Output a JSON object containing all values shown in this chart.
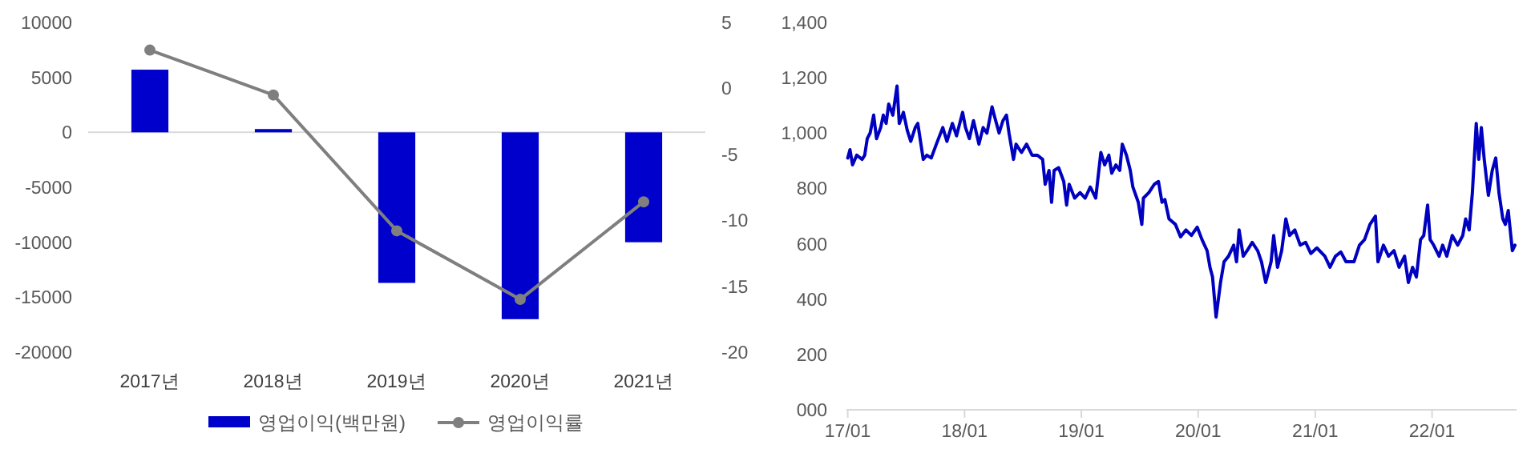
{
  "chart_data": [
    {
      "type": "bar",
      "categories": [
        "2017년",
        "2018년",
        "2019년",
        "2020년",
        "2021년"
      ],
      "series": [
        {
          "name": "영업이익(백만원)",
          "type": "bar",
          "color": "#0000cc",
          "values": [
            5700,
            300,
            -13700,
            -17000,
            -10000
          ]
        },
        {
          "name": "영업이익률",
          "type": "line",
          "axis": "y2",
          "marker": "circle",
          "color": "#7f7f7f",
          "values": [
            2.9,
            -0.5,
            -10.8,
            -16.0,
            -8.6
          ]
        }
      ],
      "ylim": [
        -20000,
        10000
      ],
      "yticks": [
        -20000,
        -15000,
        -10000,
        -5000,
        0,
        5000,
        10000
      ],
      "y2lim": [
        -20,
        5
      ],
      "y2ticks": [
        -20,
        -15,
        -10,
        -5,
        0,
        5
      ],
      "legend": "bottom"
    },
    {
      "type": "line",
      "x": [
        "2017-01-01",
        "2017-01-08",
        "2017-01-16",
        "2017-01-29",
        "2017-02-15",
        "2017-02-23",
        "2017-03-03",
        "2017-03-12",
        "2017-03-23",
        "2017-04-01",
        "2017-04-14",
        "2017-04-22",
        "2017-05-01",
        "2017-05-09",
        "2017-05-22",
        "2017-06-04",
        "2017-06-11",
        "2017-06-24",
        "2017-07-06",
        "2017-07-17",
        "2017-07-31",
        "2017-08-08",
        "2017-08-25",
        "2017-09-05",
        "2017-09-19",
        "2017-10-05",
        "2017-10-25",
        "2017-11-07",
        "2017-11-24",
        "2017-12-07",
        "2017-12-26",
        "2018-01-04",
        "2018-01-16",
        "2018-01-29",
        "2018-02-15",
        "2018-02-28",
        "2018-03-12",
        "2018-03-28",
        "2018-04-06",
        "2018-04-19",
        "2018-05-01",
        "2018-05-12",
        "2018-05-20",
        "2018-06-03",
        "2018-06-11",
        "2018-06-28",
        "2018-07-14",
        "2018-07-31",
        "2018-08-17",
        "2018-09-02",
        "2018-09-10",
        "2018-09-22",
        "2018-09-30",
        "2018-10-08",
        "2018-10-22",
        "2018-11-07",
        "2018-11-16",
        "2018-11-24",
        "2018-12-11",
        "2018-12-28",
        "2019-01-13",
        "2019-01-29",
        "2019-02-15",
        "2019-03-03",
        "2019-03-15",
        "2019-03-28",
        "2019-04-06",
        "2019-04-19",
        "2019-05-01",
        "2019-05-09",
        "2019-05-22",
        "2019-06-03",
        "2019-06-11",
        "2019-06-28",
        "2019-07-09",
        "2019-07-14",
        "2019-07-31",
        "2019-08-17",
        "2019-08-30",
        "2019-09-10",
        "2019-09-19",
        "2019-10-02",
        "2019-10-22",
        "2019-11-07",
        "2019-11-24",
        "2019-12-11",
        "2019-12-29",
        "2020-01-13",
        "2020-01-29",
        "2020-02-07",
        "2020-02-15",
        "2020-02-26",
        "2020-03-11",
        "2020-03-22",
        "2020-04-05",
        "2020-04-21",
        "2020-04-30",
        "2020-05-08",
        "2020-05-21",
        "2020-06-02",
        "2020-06-18",
        "2020-07-05",
        "2020-07-17",
        "2020-07-30",
        "2020-08-16",
        "2020-08-24",
        "2020-09-05",
        "2020-09-18",
        "2020-10-01",
        "2020-10-13",
        "2020-10-29",
        "2020-11-15",
        "2020-12-02",
        "2020-12-18",
        "2021-01-06",
        "2021-01-31",
        "2021-02-16",
        "2021-03-05",
        "2021-03-22",
        "2021-04-07",
        "2021-05-02",
        "2021-05-19",
        "2021-06-04",
        "2021-06-21",
        "2021-07-08",
        "2021-07-16",
        "2021-08-02",
        "2021-08-18",
        "2021-09-04",
        "2021-09-20",
        "2021-10-07",
        "2021-10-19",
        "2021-11-01",
        "2021-11-13",
        "2021-11-26",
        "2021-12-06",
        "2021-12-18",
        "2021-12-26",
        "2022-01-06",
        "2022-01-23",
        "2022-02-03",
        "2022-02-16",
        "2022-03-05",
        "2022-03-22",
        "2022-04-07",
        "2022-04-16",
        "2022-04-27",
        "2022-05-07",
        "2022-05-19",
        "2022-05-27",
        "2022-06-04",
        "2022-06-13",
        "2022-06-26",
        "2022-07-08",
        "2022-07-19",
        "2022-07-29",
        "2022-08-10",
        "2022-08-18",
        "2022-08-27",
        "2022-09-04",
        "2022-09-09",
        "2022-09-17"
      ],
      "series": [
        {
          "color": "#0000c0",
          "values": [
            910,
            940,
            885,
            920,
            905,
            920,
            980,
            1000,
            1065,
            980,
            1020,
            1065,
            1035,
            1105,
            1065,
            1170,
            1035,
            1075,
            1010,
            970,
            1020,
            1035,
            905,
            920,
            910,
            960,
            1020,
            970,
            1035,
            990,
            1075,
            1020,
            980,
            1045,
            960,
            1020,
            1000,
            1095,
            1055,
            1000,
            1045,
            1065,
            1000,
            905,
            960,
            930,
            960,
            920,
            920,
            905,
            815,
            865,
            750,
            865,
            875,
            825,
            740,
            815,
            765,
            785,
            765,
            805,
            765,
            930,
            885,
            920,
            855,
            885,
            865,
            960,
            920,
            865,
            805,
            750,
            670,
            765,
            785,
            815,
            825,
            750,
            760,
            690,
            670,
            625,
            650,
            630,
            660,
            615,
            575,
            515,
            480,
            335,
            460,
            535,
            555,
            595,
            535,
            650,
            555,
            575,
            605,
            575,
            535,
            460,
            535,
            630,
            515,
            575,
            690,
            630,
            650,
            595,
            605,
            565,
            585,
            555,
            515,
            555,
            570,
            535,
            535,
            595,
            615,
            670,
            700,
            535,
            595,
            555,
            575,
            515,
            555,
            460,
            515,
            480,
            615,
            630,
            740,
            615,
            595,
            555,
            595,
            555,
            630,
            595,
            630,
            690,
            650,
            785,
            1035,
            905,
            1020,
            905,
            775,
            865,
            910,
            785,
            690,
            670,
            720,
            630,
            575,
            595
          ]
        }
      ],
      "xlim": [
        "2016-12-28",
        "2022-09-22"
      ],
      "xticks": [
        {
          "value": "2017-01-01",
          "label": "17/01"
        },
        {
          "value": "2018-01-01",
          "label": "18/01"
        },
        {
          "value": "2019-01-01",
          "label": "19/01"
        },
        {
          "value": "2020-01-01",
          "label": "20/01"
        },
        {
          "value": "2021-01-01",
          "label": "21/01"
        },
        {
          "value": "2022-01-01",
          "label": "22/01"
        }
      ],
      "ylim": [
        0,
        1400
      ],
      "yticks": [
        {
          "value": 0,
          "label": "000"
        },
        200,
        400,
        600,
        800,
        {
          "value": 1000,
          "label": "1,000"
        },
        {
          "value": 1200,
          "label": "1,200"
        },
        {
          "value": 1400,
          "label": "1,400"
        }
      ]
    }
  ]
}
